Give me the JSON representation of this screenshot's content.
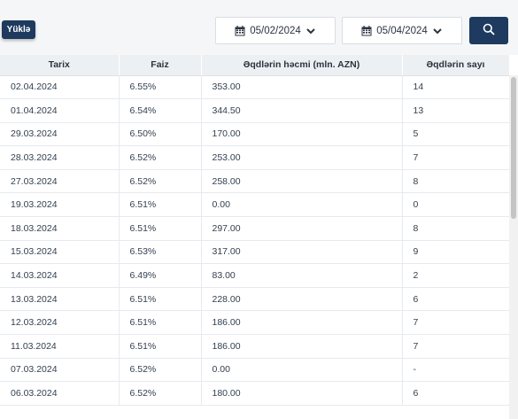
{
  "toolbar": {
    "upload_label": "Yüklə",
    "date_from": "05/02/2024",
    "date_to": "05/04/2024"
  },
  "table": {
    "headers": [
      "Tarix",
      "Faiz",
      "Əqdlərin həcmi (mln. AZN)",
      "Əqdlərin sayı"
    ],
    "rows": [
      [
        "02.04.2024",
        "6.55%",
        "353.00",
        "14"
      ],
      [
        "01.04.2024",
        "6.54%",
        "344.50",
        "13"
      ],
      [
        "29.03.2024",
        "6.50%",
        "170.00",
        "5"
      ],
      [
        "28.03.2024",
        "6.52%",
        "253.00",
        "7"
      ],
      [
        "27.03.2024",
        "6.52%",
        "258.00",
        "8"
      ],
      [
        "19.03.2024",
        "6.51%",
        "0.00",
        "0"
      ],
      [
        "18.03.2024",
        "6.51%",
        "297.00",
        "8"
      ],
      [
        "15.03.2024",
        "6.53%",
        "317.00",
        "9"
      ],
      [
        "14.03.2024",
        "6.49%",
        "83.00",
        "2"
      ],
      [
        "13.03.2024",
        "6.51%",
        "228.00",
        "6"
      ],
      [
        "12.03.2024",
        "6.51%",
        "186.00",
        "7"
      ],
      [
        "11.03.2024",
        "6.51%",
        "186.00",
        "7"
      ],
      [
        "07.03.2024",
        "6.52%",
        "0.00",
        "-"
      ],
      [
        "06.03.2024",
        "6.52%",
        "180.00",
        "6"
      ]
    ]
  },
  "icons": {
    "calendar": "calendar-icon",
    "chevron": "chevron-down-icon",
    "search": "search-icon"
  },
  "colors": {
    "primary": "#1e3a5f",
    "header_bg": "#edf0f3"
  }
}
